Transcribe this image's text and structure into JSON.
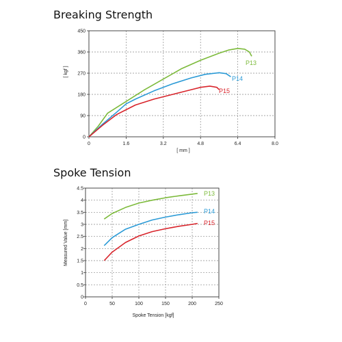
{
  "charts": {
    "breaking": {
      "title": "Breaking Strength"
    },
    "tension": {
      "title": "Spoke Tension"
    }
  },
  "colors": {
    "P13": "#7cba3a",
    "P14": "#2a9ad6",
    "P15": "#d8232a"
  },
  "chart_data": [
    {
      "type": "line",
      "title": "Breaking Strength",
      "xlabel": "[ mm ]",
      "ylabel": "[ kgf ]",
      "xlim": [
        0,
        8.0
      ],
      "ylim": [
        0,
        450
      ],
      "xticks": [
        "0",
        "1.6",
        "3.2",
        "4.8",
        "6.4",
        "8.0"
      ],
      "yticks": [
        "0",
        "90",
        "180",
        "270",
        "360",
        "450"
      ],
      "grid": true,
      "series": [
        {
          "name": "P13",
          "color": "#7cba3a",
          "x": [
            0,
            0.4,
            0.8,
            1.2,
            1.6,
            2.4,
            3.2,
            4.0,
            4.8,
            5.6,
            6.0,
            6.4,
            6.7,
            6.9,
            7.0
          ],
          "y": [
            0,
            45,
            100,
            125,
            150,
            200,
            245,
            290,
            325,
            355,
            368,
            375,
            372,
            360,
            342
          ]
        },
        {
          "name": "P14",
          "color": "#2a9ad6",
          "x": [
            0,
            0.6,
            1.2,
            1.6,
            2.0,
            2.8,
            3.6,
            4.4,
            5.0,
            5.6,
            5.9,
            6.1
          ],
          "y": [
            0,
            55,
            105,
            140,
            160,
            195,
            225,
            250,
            265,
            272,
            268,
            255
          ]
        },
        {
          "name": "P15",
          "color": "#d8232a",
          "x": [
            0,
            0.6,
            1.2,
            1.6,
            2.0,
            2.8,
            3.6,
            4.4,
            4.8,
            5.2,
            5.5,
            5.6
          ],
          "y": [
            0,
            50,
            95,
            115,
            135,
            160,
            180,
            200,
            210,
            215,
            210,
            200
          ]
        }
      ]
    },
    {
      "type": "line",
      "title": "Spoke Tension",
      "xlabel": "Spoke Tension [kgf]",
      "ylabel": "Measured Value [mm]",
      "xlim": [
        0,
        250
      ],
      "ylim": [
        0,
        4.5
      ],
      "xticks": [
        "0",
        "50",
        "100",
        "150",
        "200",
        "250"
      ],
      "yticks": [
        "0",
        "0.5",
        "1",
        "1.5",
        "2",
        "2.5",
        "3",
        "3.5",
        "4",
        "4.5"
      ],
      "grid": true,
      "series": [
        {
          "name": "P13",
          "color": "#7cba3a",
          "x": [
            35,
            50,
            75,
            100,
            125,
            150,
            175,
            200,
            210
          ],
          "y": [
            3.22,
            3.45,
            3.7,
            3.88,
            4.0,
            4.1,
            4.18,
            4.25,
            4.28
          ]
        },
        {
          "name": "P14",
          "color": "#2a9ad6",
          "x": [
            35,
            50,
            75,
            100,
            125,
            150,
            175,
            200,
            210
          ],
          "y": [
            2.12,
            2.45,
            2.8,
            3.0,
            3.18,
            3.3,
            3.4,
            3.48,
            3.5
          ]
        },
        {
          "name": "P15",
          "color": "#d8232a",
          "x": [
            35,
            50,
            75,
            100,
            125,
            150,
            175,
            200,
            210
          ],
          "y": [
            1.5,
            1.85,
            2.25,
            2.52,
            2.7,
            2.82,
            2.92,
            3.0,
            3.04
          ]
        }
      ]
    }
  ]
}
